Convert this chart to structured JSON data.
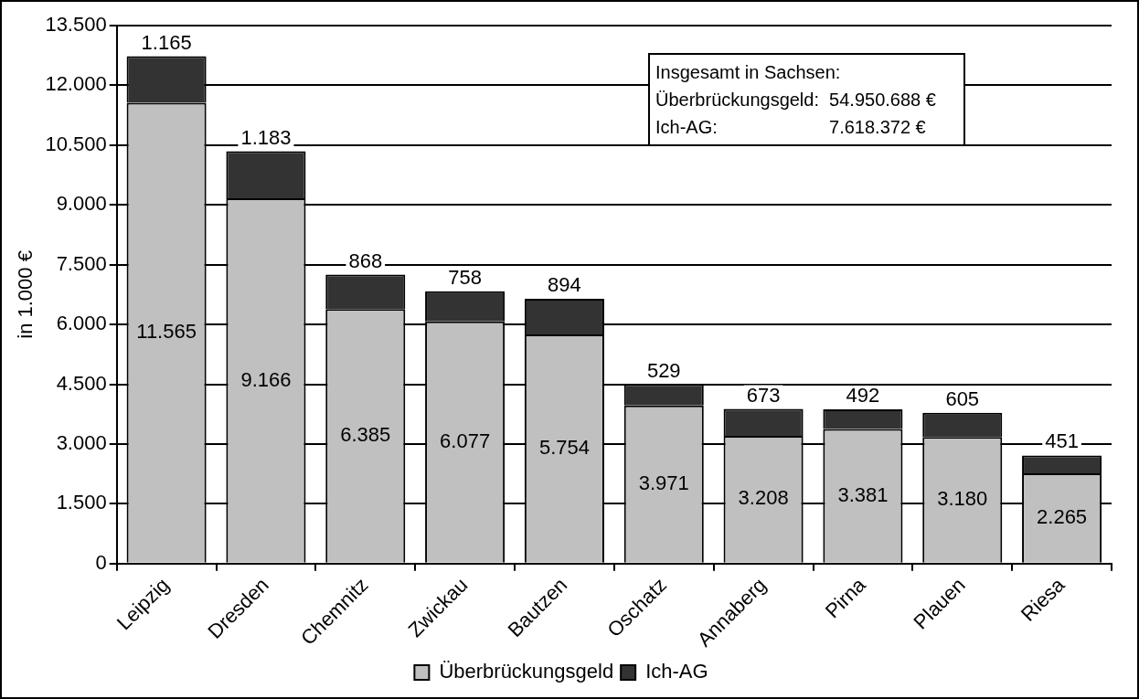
{
  "chart_data": {
    "type": "bar",
    "stacked": true,
    "ylabel": "in 1.000 €",
    "categories": [
      "Leipzig",
      "Dresden",
      "Chemnitz",
      "Zwickau",
      "Bautzen",
      "Oschatz",
      "Annaberg",
      "Pirna",
      "Plauen",
      "Riesa"
    ],
    "series": [
      {
        "name": "Überbrückungsgeld",
        "color": "#c0c0c0",
        "values": [
          11565,
          9166,
          6385,
          6077,
          5754,
          3971,
          3208,
          3381,
          3180,
          2265
        ],
        "value_labels": [
          "11.565",
          "9.166",
          "6.385",
          "6.077",
          "5.754",
          "3.971",
          "3.208",
          "3.381",
          "3.180",
          "2.265"
        ]
      },
      {
        "name": "Ich-AG",
        "color": "#333333",
        "values": [
          1165,
          1183,
          868,
          758,
          894,
          529,
          673,
          492,
          605,
          451
        ],
        "value_labels": [
          "1.165",
          "1.183",
          "868",
          "758",
          "894",
          "529",
          "673",
          "492",
          "605",
          "451"
        ]
      }
    ],
    "ylim": [
      0,
      13500
    ],
    "yticks": [
      0,
      {
        "value": 1500,
        "label": "1.500"
      },
      {
        "value": 3000,
        "label": "3.000"
      },
      {
        "value": 4500,
        "label": "4.500"
      },
      {
        "value": 6000,
        "label": "6.000"
      },
      {
        "value": 7500,
        "label": "7.500"
      },
      {
        "value": 9000,
        "label": "9.000"
      },
      {
        "value": 10500,
        "label": "10.500"
      },
      {
        "value": 12000,
        "label": "12.000"
      },
      {
        "value": 13500,
        "label": "13.500"
      }
    ],
    "grid": "y",
    "legend": "bottom",
    "annotations": [
      "Insgesamt in Sachsen:",
      "Überbrückungsgeld:  54.950.688 €",
      "Ich-AG:                      7.618.372 €"
    ]
  }
}
